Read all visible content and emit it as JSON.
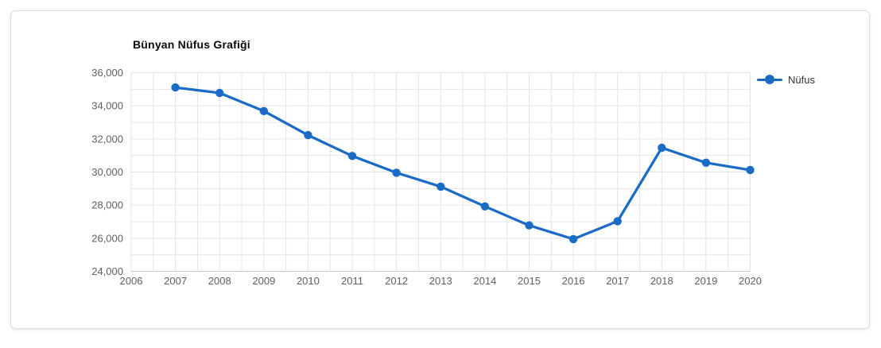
{
  "chart_data": {
    "type": "line",
    "title": "Bünyan Nüfus Grafiği",
    "x": [
      2007,
      2008,
      2009,
      2010,
      2011,
      2012,
      2013,
      2014,
      2015,
      2016,
      2017,
      2018,
      2019,
      2020
    ],
    "series": [
      {
        "name": "Nüfus",
        "color": "#1a6bc6",
        "values": [
          35108,
          34777,
          33681,
          32229,
          30970,
          29955,
          29118,
          27924,
          26775,
          25951,
          27030,
          31466,
          30563,
          30122
        ]
      }
    ],
    "x_axis": {
      "ticks": [
        2006,
        2007,
        2008,
        2009,
        2010,
        2011,
        2012,
        2013,
        2014,
        2015,
        2016,
        2017,
        2018,
        2019,
        2020
      ],
      "range": [
        2006,
        2020
      ],
      "minor_grid_step": 0.5
    },
    "y_axis": {
      "min": 24000,
      "max": 36000,
      "grid_step": 1000,
      "label_step": 2000,
      "tick_labels": [
        "24,000",
        "26,000",
        "28,000",
        "30,000",
        "32,000",
        "34,000",
        "36,000"
      ]
    },
    "legend": {
      "label": "Nüfus",
      "position": "top-right"
    },
    "grid": true,
    "colors": {
      "line": "#1a6bc6",
      "grid": "#e4e4e4",
      "axis_line": "#c6c6c6",
      "tick_label": "#5f5f5f",
      "title": "#0a0a0a"
    }
  }
}
